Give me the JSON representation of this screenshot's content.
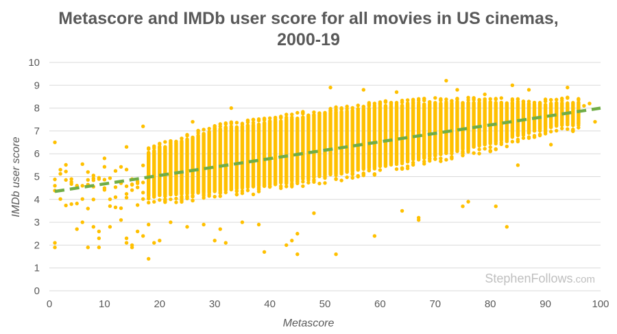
{
  "chart_data": {
    "type": "scatter",
    "title_line1": "Metascore and IMDb user score for all movies in US cinemas,",
    "title_line2": "2000-19",
    "xlabel": "Metascore",
    "ylabel": "IMDb user score",
    "xlim": [
      0,
      100
    ],
    "ylim": [
      0,
      10
    ],
    "x_ticks": [
      0,
      10,
      20,
      30,
      40,
      50,
      60,
      70,
      80,
      90,
      100
    ],
    "y_ticks": [
      0,
      1,
      2,
      3,
      4,
      5,
      6,
      7,
      8,
      9,
      10
    ],
    "grid": "horizontal",
    "legend": "none",
    "trendline": {
      "x": [
        1,
        100
      ],
      "y": [
        4.35,
        8.0
      ],
      "color": "#70ad47",
      "style": "dashed"
    },
    "band": {
      "x_range": [
        18,
        96
      ],
      "description": "dense vertical columns of points at each integer metascore; upper edge rises from about 6.3 to 8.5, lower edge from about 3.8 to 7.0"
    },
    "outliers": [
      {
        "x": 1,
        "y": 6.5
      },
      {
        "x": 1,
        "y": 4.6
      },
      {
        "x": 1,
        "y": 2.1
      },
      {
        "x": 1,
        "y": 1.9
      },
      {
        "x": 2,
        "y": 5.3
      },
      {
        "x": 5,
        "y": 2.7
      },
      {
        "x": 6,
        "y": 3.0
      },
      {
        "x": 6,
        "y": 4.6
      },
      {
        "x": 7,
        "y": 1.9
      },
      {
        "x": 7,
        "y": 3.6
      },
      {
        "x": 7,
        "y": 5.2
      },
      {
        "x": 8,
        "y": 2.8
      },
      {
        "x": 8,
        "y": 4.0
      },
      {
        "x": 9,
        "y": 1.9
      },
      {
        "x": 9,
        "y": 2.6
      },
      {
        "x": 9,
        "y": 2.3
      },
      {
        "x": 10,
        "y": 5.8
      },
      {
        "x": 10,
        "y": 4.5
      },
      {
        "x": 11,
        "y": 2.8
      },
      {
        "x": 12,
        "y": 4.1
      },
      {
        "x": 13,
        "y": 3.1
      },
      {
        "x": 14,
        "y": 6.3
      },
      {
        "x": 14,
        "y": 2.3
      },
      {
        "x": 14,
        "y": 2.1
      },
      {
        "x": 15,
        "y": 2.0
      },
      {
        "x": 15,
        "y": 1.9
      },
      {
        "x": 16,
        "y": 2.6
      },
      {
        "x": 17,
        "y": 2.4
      },
      {
        "x": 17,
        "y": 7.2
      },
      {
        "x": 18,
        "y": 1.4
      },
      {
        "x": 18,
        "y": 2.9
      },
      {
        "x": 19,
        "y": 2.1
      },
      {
        "x": 20,
        "y": 2.2
      },
      {
        "x": 22,
        "y": 3.0
      },
      {
        "x": 25,
        "y": 2.8
      },
      {
        "x": 26,
        "y": 7.4
      },
      {
        "x": 28,
        "y": 2.9
      },
      {
        "x": 30,
        "y": 2.2
      },
      {
        "x": 31,
        "y": 2.7
      },
      {
        "x": 32,
        "y": 2.1
      },
      {
        "x": 33,
        "y": 8.0
      },
      {
        "x": 35,
        "y": 3.0
      },
      {
        "x": 38,
        "y": 2.9
      },
      {
        "x": 39,
        "y": 1.7
      },
      {
        "x": 43,
        "y": 2.0
      },
      {
        "x": 44,
        "y": 2.2
      },
      {
        "x": 45,
        "y": 1.6
      },
      {
        "x": 45,
        "y": 2.5
      },
      {
        "x": 48,
        "y": 3.4
      },
      {
        "x": 51,
        "y": 8.9
      },
      {
        "x": 52,
        "y": 1.6
      },
      {
        "x": 57,
        "y": 8.8
      },
      {
        "x": 59,
        "y": 2.4
      },
      {
        "x": 63,
        "y": 8.7
      },
      {
        "x": 64,
        "y": 3.5
      },
      {
        "x": 67,
        "y": 3.2
      },
      {
        "x": 67,
        "y": 3.1
      },
      {
        "x": 72,
        "y": 9.2
      },
      {
        "x": 74,
        "y": 8.8
      },
      {
        "x": 75,
        "y": 3.7
      },
      {
        "x": 76,
        "y": 3.9
      },
      {
        "x": 79,
        "y": 8.6
      },
      {
        "x": 81,
        "y": 3.7
      },
      {
        "x": 83,
        "y": 2.8
      },
      {
        "x": 84,
        "y": 9.0
      },
      {
        "x": 85,
        "y": 5.5
      },
      {
        "x": 87,
        "y": 8.8
      },
      {
        "x": 91,
        "y": 6.4
      },
      {
        "x": 94,
        "y": 8.9
      },
      {
        "x": 97,
        "y": 8.1
      },
      {
        "x": 98,
        "y": 8.2
      },
      {
        "x": 99,
        "y": 7.4
      }
    ],
    "colors": {
      "points": "#ffc000",
      "trendline": "#70ad47",
      "grid": "#d9d9d9",
      "text": "#595959"
    }
  },
  "watermark": {
    "main": "StephenFollows",
    "suffix": ".com"
  }
}
